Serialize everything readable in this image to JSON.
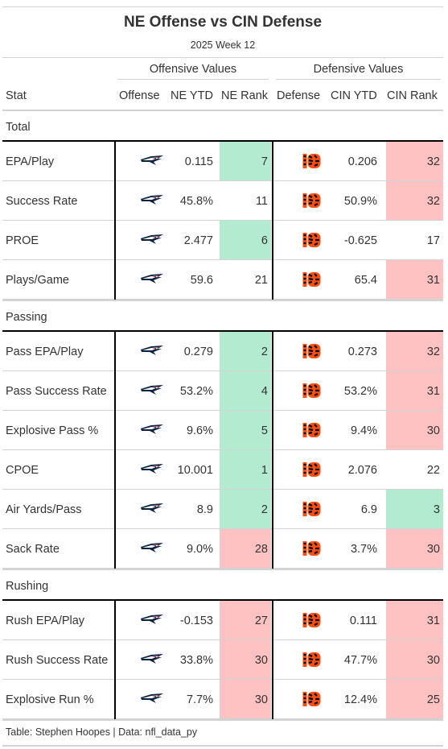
{
  "title": "NE Offense vs CIN Defense",
  "subtitle": "2025 Week 12",
  "spanners": {
    "offense": "Offensive Values",
    "defense": "Defensive Values"
  },
  "columns": {
    "stat": "Stat",
    "offense": "Offense",
    "ne_ytd": "NE YTD",
    "ne_rank": "NE Rank",
    "defense": "Defense",
    "cin_ytd": "CIN YTD",
    "cin_rank": "CIN Rank"
  },
  "colors": {
    "good": "#b2ebd0",
    "bad": "#ffc2c2",
    "none": "#ffffff"
  },
  "logos": {
    "offense": "patriots-logo-icon",
    "defense": "bengals-logo-icon"
  },
  "groups": [
    {
      "name": "Total",
      "rows": [
        {
          "stat": "EPA/Play",
          "ne_ytd": "0.115",
          "ne_rank": "7",
          "ne_color": "good",
          "cin_ytd": "0.206",
          "cin_rank": "32",
          "cin_color": "bad"
        },
        {
          "stat": "Success Rate",
          "ne_ytd": "45.8%",
          "ne_rank": "11",
          "ne_color": "none",
          "cin_ytd": "50.9%",
          "cin_rank": "32",
          "cin_color": "bad"
        },
        {
          "stat": "PROE",
          "ne_ytd": "2.477",
          "ne_rank": "6",
          "ne_color": "good",
          "cin_ytd": "-0.625",
          "cin_rank": "17",
          "cin_color": "none"
        },
        {
          "stat": "Plays/Game",
          "ne_ytd": "59.6",
          "ne_rank": "21",
          "ne_color": "none",
          "cin_ytd": "65.4",
          "cin_rank": "31",
          "cin_color": "bad"
        }
      ]
    },
    {
      "name": "Passing",
      "rows": [
        {
          "stat": "Pass EPA/Play",
          "ne_ytd": "0.279",
          "ne_rank": "2",
          "ne_color": "good",
          "cin_ytd": "0.273",
          "cin_rank": "32",
          "cin_color": "bad"
        },
        {
          "stat": "Pass Success Rate",
          "ne_ytd": "53.2%",
          "ne_rank": "4",
          "ne_color": "good",
          "cin_ytd": "53.2%",
          "cin_rank": "31",
          "cin_color": "bad"
        },
        {
          "stat": "Explosive Pass %",
          "ne_ytd": "9.6%",
          "ne_rank": "5",
          "ne_color": "good",
          "cin_ytd": "9.4%",
          "cin_rank": "30",
          "cin_color": "bad"
        },
        {
          "stat": "CPOE",
          "ne_ytd": "10.001",
          "ne_rank": "1",
          "ne_color": "good",
          "cin_ytd": "2.076",
          "cin_rank": "22",
          "cin_color": "none"
        },
        {
          "stat": "Air Yards/Pass",
          "ne_ytd": "8.9",
          "ne_rank": "2",
          "ne_color": "good",
          "cin_ytd": "6.9",
          "cin_rank": "3",
          "cin_color": "good"
        },
        {
          "stat": "Sack Rate",
          "ne_ytd": "9.0%",
          "ne_rank": "28",
          "ne_color": "bad",
          "cin_ytd": "3.7%",
          "cin_rank": "30",
          "cin_color": "bad"
        }
      ]
    },
    {
      "name": "Rushing",
      "rows": [
        {
          "stat": "Rush EPA/Play",
          "ne_ytd": "-0.153",
          "ne_rank": "27",
          "ne_color": "bad",
          "cin_ytd": "0.111",
          "cin_rank": "31",
          "cin_color": "bad"
        },
        {
          "stat": "Rush Success Rate",
          "ne_ytd": "33.8%",
          "ne_rank": "30",
          "ne_color": "bad",
          "cin_ytd": "47.7%",
          "cin_rank": "30",
          "cin_color": "bad"
        },
        {
          "stat": "Explosive Run %",
          "ne_ytd": "7.7%",
          "ne_rank": "30",
          "ne_color": "bad",
          "cin_ytd": "12.4%",
          "cin_rank": "25",
          "cin_color": "bad"
        }
      ]
    }
  ],
  "footer": "Table: Stephen Hoopes | Data: nfl_data_py"
}
